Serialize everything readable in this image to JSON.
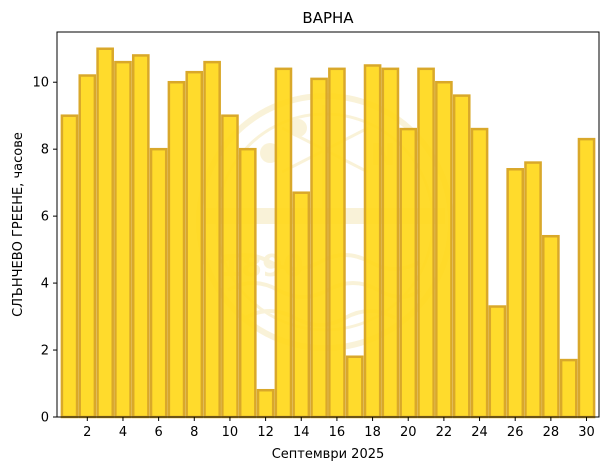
{
  "chart_data": {
    "type": "bar",
    "title": "ВАРНА",
    "xlabel": "Септември  2025",
    "ylabel": "СЛЪНЧЕВО ГРЕЕНЕ,  часове",
    "categories": [
      1,
      2,
      3,
      4,
      5,
      6,
      7,
      8,
      9,
      10,
      11,
      12,
      13,
      14,
      15,
      16,
      17,
      18,
      19,
      20,
      21,
      22,
      23,
      24,
      25,
      26,
      27,
      28,
      29,
      30
    ],
    "values": [
      9.0,
      10.2,
      11.0,
      10.6,
      10.8,
      8.0,
      10.0,
      10.3,
      10.6,
      9.0,
      8.0,
      0.8,
      10.4,
      6.7,
      10.1,
      10.4,
      1.8,
      10.5,
      10.4,
      8.6,
      10.4,
      10.0,
      9.6,
      8.6,
      3.3,
      7.4,
      7.6,
      5.4,
      1.7,
      8.3
    ],
    "xticks": [
      2,
      4,
      6,
      8,
      10,
      12,
      14,
      16,
      18,
      20,
      22,
      24,
      26,
      28,
      30
    ],
    "yticks": [
      0,
      2,
      4,
      6,
      8,
      10
    ],
    "xlim": [
      0.3,
      30.7
    ],
    "ylim": [
      0,
      11.5
    ],
    "colors": {
      "bar_fill": "#FFD81A",
      "bar_edge": "#D9A82A",
      "watermark": "#E0B515"
    },
    "watermark": {
      "text": "1890",
      "letter": "N"
    },
    "grid": false,
    "legend": "none"
  }
}
